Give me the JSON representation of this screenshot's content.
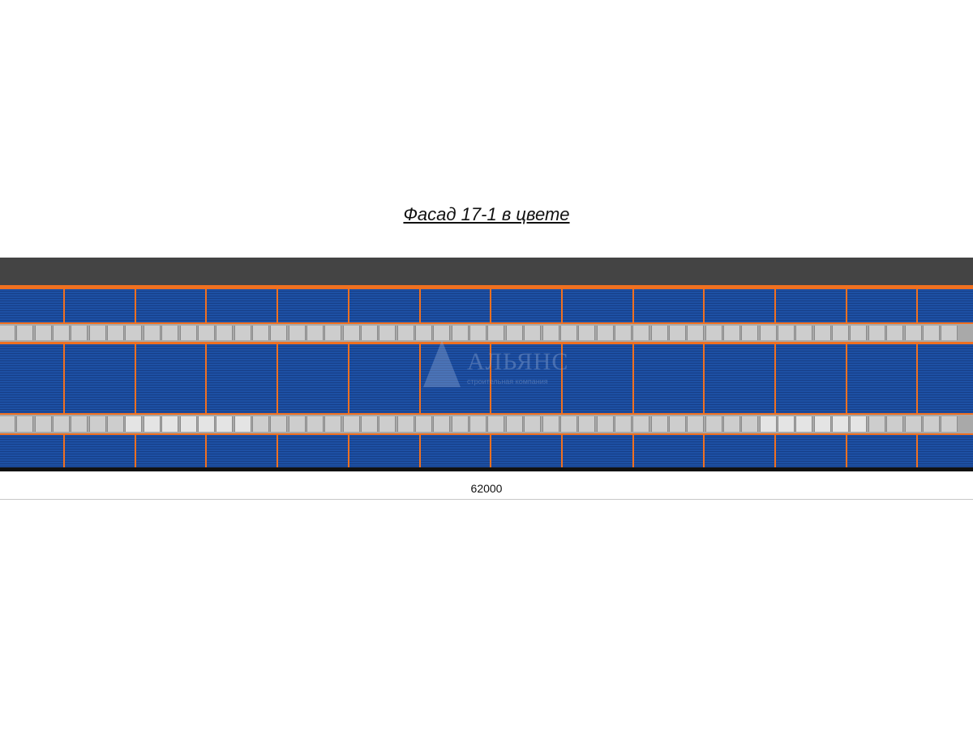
{
  "title": "Фасад 17-1 в цвете",
  "dimension": "62000",
  "watermark": {
    "name": "АЛЬЯНС",
    "subtitle": "строительная компания"
  },
  "colors": {
    "roof": "#444444",
    "trim": "#f07020",
    "panel": "#1c4ea0",
    "window": "#cdcdcd",
    "base": "#111111"
  },
  "facade": {
    "bays": 14,
    "windows_per_strip": 53
  }
}
